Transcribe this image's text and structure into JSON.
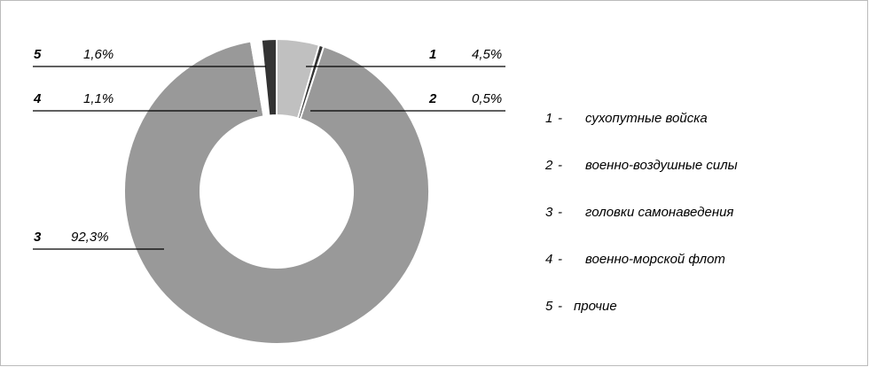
{
  "chart_data": {
    "type": "donut",
    "ids": [
      "1",
      "2",
      "3",
      "4",
      "5"
    ],
    "separator": "-",
    "categories": [
      "сухопутные войска",
      "военно-воздушные силы",
      "головки самонаведения",
      "военно-морской флот",
      "прочие"
    ],
    "values": [
      4.5,
      0.5,
      92.3,
      1.1,
      1.6
    ],
    "value_labels": [
      "4,5%",
      "0,5%",
      "92,3%",
      "1,1%",
      "1,6%"
    ],
    "colors": [
      "#c0c0c0",
      "#333333",
      "#999999",
      "#ffffff",
      "#333333"
    ]
  }
}
